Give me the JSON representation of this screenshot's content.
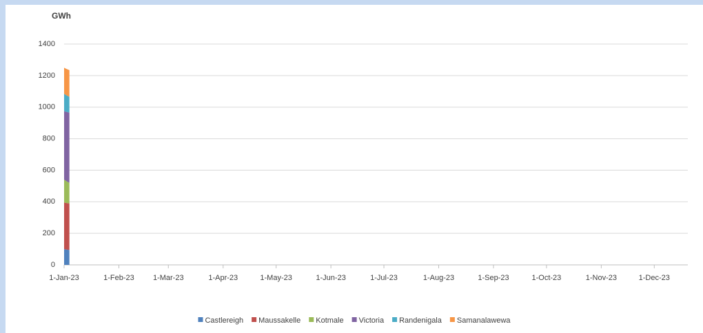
{
  "chart_data": {
    "type": "stacked-area",
    "y_label": "GWh",
    "x": [
      "2023-01-01",
      "2023-01-02",
      "2023-01-03",
      "2023-01-04"
    ],
    "series": [
      {
        "name": "Castlereigh",
        "color": "#4f81bd",
        "values": [
          100,
          98,
          96,
          95
        ]
      },
      {
        "name": "Maussakelle",
        "color": "#c0504d",
        "values": [
          295,
          295,
          295,
          295
        ]
      },
      {
        "name": "Kotmale",
        "color": "#9bbb59",
        "values": [
          145,
          140,
          135,
          130
        ]
      },
      {
        "name": "Victoria",
        "color": "#8064a2",
        "values": [
          435,
          438,
          442,
          445
        ]
      },
      {
        "name": "Randenigala",
        "color": "#4bacc6",
        "values": [
          110,
          106,
          103,
          100
        ]
      },
      {
        "name": "Samanalawewa",
        "color": "#f79646",
        "values": [
          165,
          167,
          168,
          170
        ]
      }
    ],
    "xlim": [
      "2023-01-01",
      "2023-12-20"
    ],
    "xticks": [
      {
        "value": "2023-01-01",
        "label": "1-Jan-23"
      },
      {
        "value": "2023-02-01",
        "label": "1-Feb-23"
      },
      {
        "value": "2023-03-01",
        "label": "1-Mar-23"
      },
      {
        "value": "2023-04-01",
        "label": "1-Apr-23"
      },
      {
        "value": "2023-05-01",
        "label": "1-May-23"
      },
      {
        "value": "2023-06-01",
        "label": "1-Jun-23"
      },
      {
        "value": "2023-07-01",
        "label": "1-Jul-23"
      },
      {
        "value": "2023-08-01",
        "label": "1-Aug-23"
      },
      {
        "value": "2023-09-01",
        "label": "1-Sep-23"
      },
      {
        "value": "2023-10-01",
        "label": "1-Oct-23"
      },
      {
        "value": "2023-11-01",
        "label": "1-Nov-23"
      },
      {
        "value": "2023-12-01",
        "label": "1-Dec-23"
      }
    ],
    "ylim": [
      0,
      1400
    ],
    "yticks": [
      0,
      200,
      400,
      600,
      800,
      1000,
      1200,
      1400
    ],
    "grid": true,
    "legend": "bottom"
  }
}
